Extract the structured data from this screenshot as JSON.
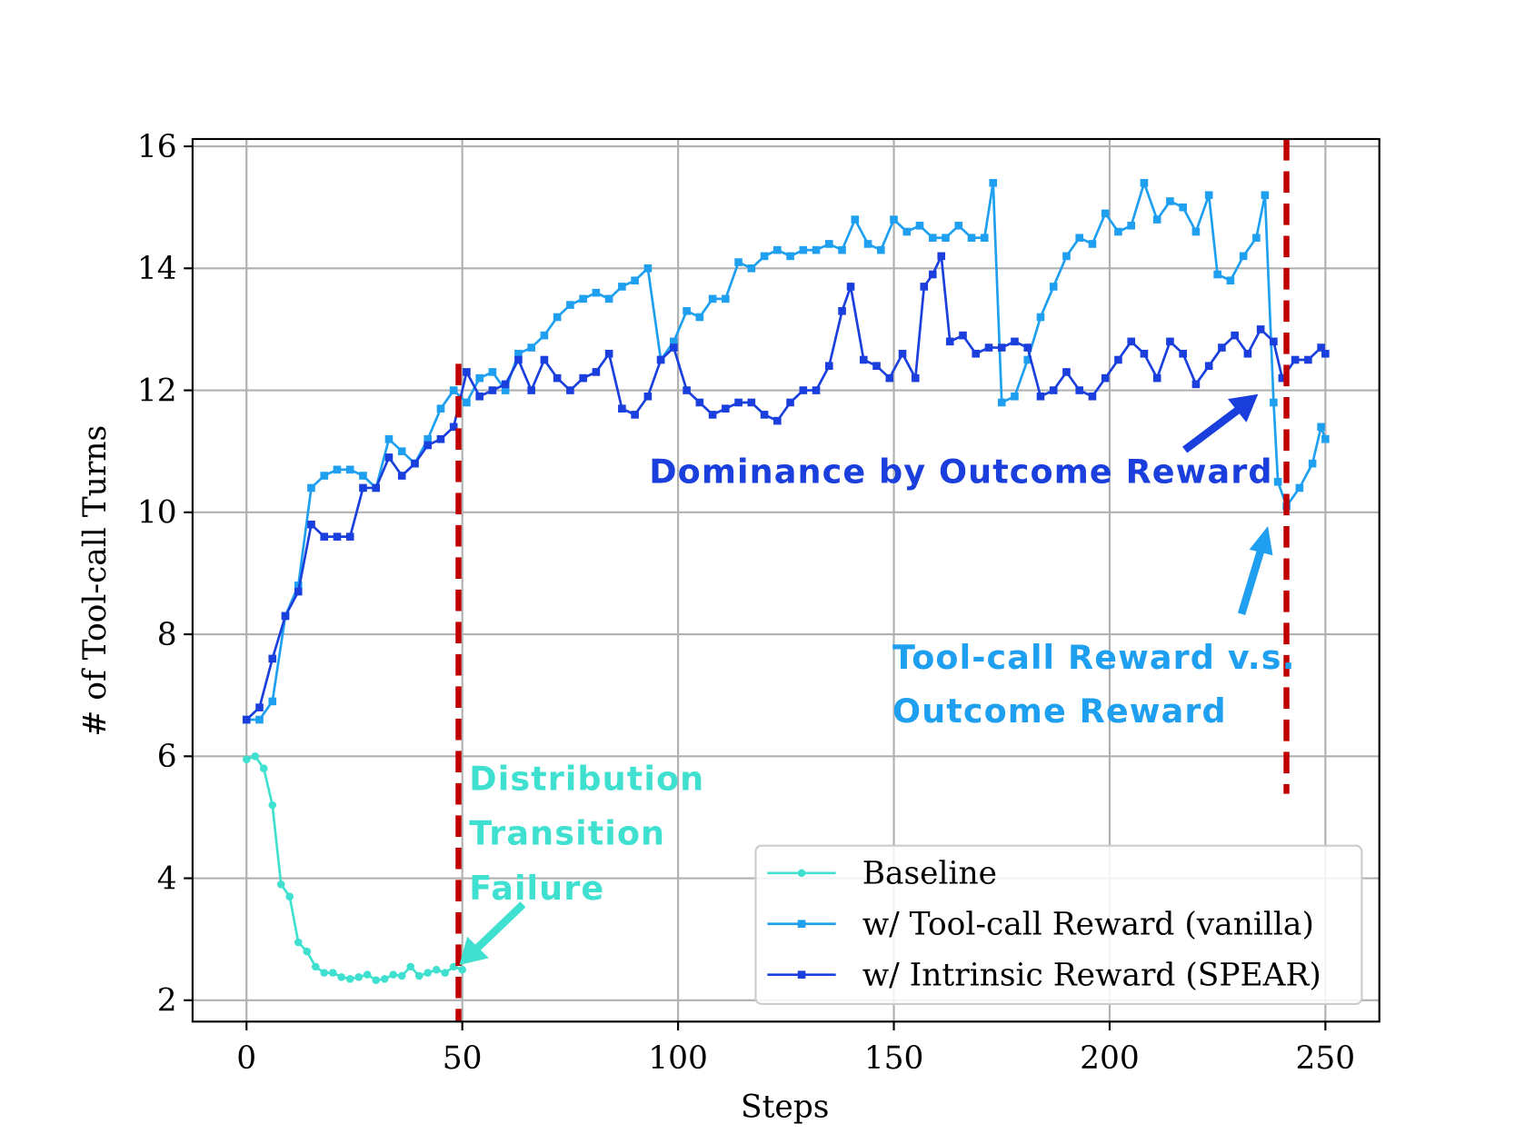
{
  "chart_data": {
    "type": "line",
    "xlabel": "Steps",
    "ylabel": "# of Tool-call Turns",
    "xlim": [
      -12.5,
      262.5
    ],
    "ylim": [
      1.65,
      16.12
    ],
    "xticks": [
      0,
      50,
      100,
      150,
      200,
      250
    ],
    "yticks": [
      2,
      4,
      6,
      8,
      10,
      12,
      14,
      16
    ],
    "grid": true,
    "legend": "lower right",
    "annotations": [
      "Dominance by Outcome Reward",
      "Tool-call Reward v.s.",
      "Outcome Reward",
      "Distribution",
      "Transition",
      "Failure"
    ],
    "series": [
      {
        "name": "Baseline",
        "color": "#40e0d0",
        "marker": "circle",
        "x": [
          0,
          2,
          4,
          6,
          8,
          10,
          12,
          14,
          16,
          18,
          20,
          22,
          24,
          26,
          28,
          30,
          32,
          34,
          36,
          38,
          40,
          42,
          44,
          46,
          48,
          50
        ],
        "values": [
          5.95,
          6.0,
          5.8,
          5.2,
          3.9,
          3.7,
          2.95,
          2.8,
          2.55,
          2.45,
          2.45,
          2.38,
          2.35,
          2.38,
          2.42,
          2.33,
          2.35,
          2.42,
          2.4,
          2.55,
          2.4,
          2.45,
          2.5,
          2.45,
          2.55,
          2.5
        ]
      },
      {
        "name": "w/ Tool-call Reward (vanilla)",
        "color": "#1f9fef",
        "marker": "square",
        "x": [
          0,
          3,
          6,
          9,
          12,
          15,
          18,
          21,
          24,
          27,
          30,
          33,
          36,
          39,
          42,
          45,
          48,
          51,
          54,
          57,
          60,
          63,
          66,
          69,
          72,
          75,
          78,
          81,
          84,
          87,
          90,
          93,
          96,
          99,
          102,
          105,
          108,
          111,
          114,
          117,
          120,
          123,
          126,
          129,
          132,
          135,
          138,
          141,
          144,
          147,
          150,
          153,
          156,
          159,
          162,
          165,
          168,
          171,
          173,
          175,
          178,
          181,
          184,
          187,
          190,
          193,
          196,
          199,
          202,
          205,
          208,
          211,
          214,
          217,
          220,
          223,
          225,
          228,
          231,
          234,
          236,
          238,
          239,
          241,
          244,
          247,
          249,
          250
        ],
        "values": [
          6.6,
          6.6,
          6.9,
          8.3,
          8.8,
          10.4,
          10.6,
          10.7,
          10.7,
          10.6,
          10.4,
          11.2,
          11.0,
          10.8,
          11.2,
          11.7,
          12.0,
          11.8,
          12.2,
          12.3,
          12.0,
          12.6,
          12.7,
          12.9,
          13.2,
          13.4,
          13.5,
          13.6,
          13.5,
          13.7,
          13.8,
          14.0,
          12.5,
          12.8,
          13.3,
          13.2,
          13.5,
          13.5,
          14.1,
          14.0,
          14.2,
          14.3,
          14.2,
          14.3,
          14.3,
          14.4,
          14.3,
          14.8,
          14.4,
          14.3,
          14.8,
          14.6,
          14.7,
          14.5,
          14.5,
          14.7,
          14.5,
          14.5,
          15.4,
          11.8,
          11.9,
          12.5,
          13.2,
          13.7,
          14.2,
          14.5,
          14.4,
          14.9,
          14.6,
          14.7,
          15.4,
          14.8,
          15.1,
          15.0,
          14.6,
          15.2,
          13.9,
          13.8,
          14.2,
          14.5,
          15.2,
          11.8,
          10.5,
          10.1,
          10.4,
          10.8,
          11.4,
          11.2
        ]
      },
      {
        "name": "w/ Intrinsic Reward (SPEAR)",
        "color": "#1a3fdd",
        "marker": "square",
        "x": [
          0,
          3,
          6,
          9,
          12,
          15,
          18,
          21,
          24,
          27,
          30,
          33,
          36,
          39,
          42,
          45,
          48,
          51,
          54,
          57,
          60,
          63,
          66,
          69,
          72,
          75,
          78,
          81,
          84,
          87,
          90,
          93,
          96,
          99,
          102,
          105,
          108,
          111,
          114,
          117,
          120,
          123,
          126,
          129,
          132,
          135,
          138,
          140,
          143,
          146,
          149,
          152,
          155,
          157,
          159,
          161,
          163,
          166,
          169,
          172,
          175,
          178,
          181,
          184,
          187,
          190,
          193,
          196,
          199,
          202,
          205,
          208,
          211,
          214,
          217,
          220,
          223,
          226,
          229,
          232,
          235,
          238,
          240,
          243,
          246,
          249,
          250
        ],
        "values": [
          6.6,
          6.8,
          7.6,
          8.3,
          8.7,
          9.8,
          9.6,
          9.6,
          9.6,
          10.4,
          10.4,
          10.9,
          10.6,
          10.8,
          11.1,
          11.2,
          11.4,
          12.3,
          11.9,
          12.0,
          12.1,
          12.5,
          12.0,
          12.5,
          12.2,
          12.0,
          12.2,
          12.3,
          12.6,
          11.7,
          11.6,
          11.9,
          12.5,
          12.7,
          12.0,
          11.8,
          11.6,
          11.7,
          11.8,
          11.8,
          11.6,
          11.5,
          11.8,
          12.0,
          12.0,
          12.4,
          13.3,
          13.7,
          12.5,
          12.4,
          12.2,
          12.6,
          12.2,
          13.7,
          13.9,
          14.2,
          12.8,
          12.9,
          12.6,
          12.7,
          12.7,
          12.8,
          12.7,
          11.9,
          12.0,
          12.3,
          12.0,
          11.9,
          12.2,
          12.5,
          12.8,
          12.6,
          12.2,
          12.8,
          12.6,
          12.1,
          12.4,
          12.7,
          12.9,
          12.6,
          13.0,
          12.8,
          12.2,
          12.5,
          12.5,
          12.7,
          12.6
        ]
      }
    ]
  }
}
